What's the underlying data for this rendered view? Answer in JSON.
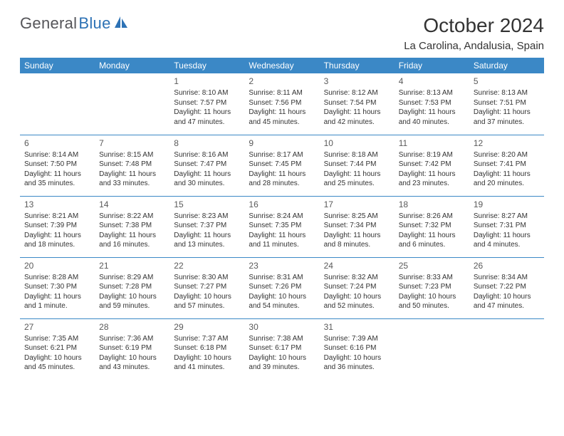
{
  "brand": {
    "name1": "General",
    "name2": "Blue"
  },
  "title": "October 2024",
  "location": "La Carolina, Andalusia, Spain",
  "colors": {
    "header_bg": "#3b88c6",
    "header_text": "#ffffff",
    "row_border": "#3b88c6",
    "body_text": "#333333",
    "logo_gray": "#555559",
    "logo_blue": "#2d72b5",
    "background": "#ffffff"
  },
  "weekdays": [
    "Sunday",
    "Monday",
    "Tuesday",
    "Wednesday",
    "Thursday",
    "Friday",
    "Saturday"
  ],
  "weeks": [
    [
      null,
      null,
      {
        "n": "1",
        "sr": "Sunrise: 8:10 AM",
        "ss": "Sunset: 7:57 PM",
        "d1": "Daylight: 11 hours",
        "d2": "and 47 minutes."
      },
      {
        "n": "2",
        "sr": "Sunrise: 8:11 AM",
        "ss": "Sunset: 7:56 PM",
        "d1": "Daylight: 11 hours",
        "d2": "and 45 minutes."
      },
      {
        "n": "3",
        "sr": "Sunrise: 8:12 AM",
        "ss": "Sunset: 7:54 PM",
        "d1": "Daylight: 11 hours",
        "d2": "and 42 minutes."
      },
      {
        "n": "4",
        "sr": "Sunrise: 8:13 AM",
        "ss": "Sunset: 7:53 PM",
        "d1": "Daylight: 11 hours",
        "d2": "and 40 minutes."
      },
      {
        "n": "5",
        "sr": "Sunrise: 8:13 AM",
        "ss": "Sunset: 7:51 PM",
        "d1": "Daylight: 11 hours",
        "d2": "and 37 minutes."
      }
    ],
    [
      {
        "n": "6",
        "sr": "Sunrise: 8:14 AM",
        "ss": "Sunset: 7:50 PM",
        "d1": "Daylight: 11 hours",
        "d2": "and 35 minutes."
      },
      {
        "n": "7",
        "sr": "Sunrise: 8:15 AM",
        "ss": "Sunset: 7:48 PM",
        "d1": "Daylight: 11 hours",
        "d2": "and 33 minutes."
      },
      {
        "n": "8",
        "sr": "Sunrise: 8:16 AM",
        "ss": "Sunset: 7:47 PM",
        "d1": "Daylight: 11 hours",
        "d2": "and 30 minutes."
      },
      {
        "n": "9",
        "sr": "Sunrise: 8:17 AM",
        "ss": "Sunset: 7:45 PM",
        "d1": "Daylight: 11 hours",
        "d2": "and 28 minutes."
      },
      {
        "n": "10",
        "sr": "Sunrise: 8:18 AM",
        "ss": "Sunset: 7:44 PM",
        "d1": "Daylight: 11 hours",
        "d2": "and 25 minutes."
      },
      {
        "n": "11",
        "sr": "Sunrise: 8:19 AM",
        "ss": "Sunset: 7:42 PM",
        "d1": "Daylight: 11 hours",
        "d2": "and 23 minutes."
      },
      {
        "n": "12",
        "sr": "Sunrise: 8:20 AM",
        "ss": "Sunset: 7:41 PM",
        "d1": "Daylight: 11 hours",
        "d2": "and 20 minutes."
      }
    ],
    [
      {
        "n": "13",
        "sr": "Sunrise: 8:21 AM",
        "ss": "Sunset: 7:39 PM",
        "d1": "Daylight: 11 hours",
        "d2": "and 18 minutes."
      },
      {
        "n": "14",
        "sr": "Sunrise: 8:22 AM",
        "ss": "Sunset: 7:38 PM",
        "d1": "Daylight: 11 hours",
        "d2": "and 16 minutes."
      },
      {
        "n": "15",
        "sr": "Sunrise: 8:23 AM",
        "ss": "Sunset: 7:37 PM",
        "d1": "Daylight: 11 hours",
        "d2": "and 13 minutes."
      },
      {
        "n": "16",
        "sr": "Sunrise: 8:24 AM",
        "ss": "Sunset: 7:35 PM",
        "d1": "Daylight: 11 hours",
        "d2": "and 11 minutes."
      },
      {
        "n": "17",
        "sr": "Sunrise: 8:25 AM",
        "ss": "Sunset: 7:34 PM",
        "d1": "Daylight: 11 hours",
        "d2": "and 8 minutes."
      },
      {
        "n": "18",
        "sr": "Sunrise: 8:26 AM",
        "ss": "Sunset: 7:32 PM",
        "d1": "Daylight: 11 hours",
        "d2": "and 6 minutes."
      },
      {
        "n": "19",
        "sr": "Sunrise: 8:27 AM",
        "ss": "Sunset: 7:31 PM",
        "d1": "Daylight: 11 hours",
        "d2": "and 4 minutes."
      }
    ],
    [
      {
        "n": "20",
        "sr": "Sunrise: 8:28 AM",
        "ss": "Sunset: 7:30 PM",
        "d1": "Daylight: 11 hours",
        "d2": "and 1 minute."
      },
      {
        "n": "21",
        "sr": "Sunrise: 8:29 AM",
        "ss": "Sunset: 7:28 PM",
        "d1": "Daylight: 10 hours",
        "d2": "and 59 minutes."
      },
      {
        "n": "22",
        "sr": "Sunrise: 8:30 AM",
        "ss": "Sunset: 7:27 PM",
        "d1": "Daylight: 10 hours",
        "d2": "and 57 minutes."
      },
      {
        "n": "23",
        "sr": "Sunrise: 8:31 AM",
        "ss": "Sunset: 7:26 PM",
        "d1": "Daylight: 10 hours",
        "d2": "and 54 minutes."
      },
      {
        "n": "24",
        "sr": "Sunrise: 8:32 AM",
        "ss": "Sunset: 7:24 PM",
        "d1": "Daylight: 10 hours",
        "d2": "and 52 minutes."
      },
      {
        "n": "25",
        "sr": "Sunrise: 8:33 AM",
        "ss": "Sunset: 7:23 PM",
        "d1": "Daylight: 10 hours",
        "d2": "and 50 minutes."
      },
      {
        "n": "26",
        "sr": "Sunrise: 8:34 AM",
        "ss": "Sunset: 7:22 PM",
        "d1": "Daylight: 10 hours",
        "d2": "and 47 minutes."
      }
    ],
    [
      {
        "n": "27",
        "sr": "Sunrise: 7:35 AM",
        "ss": "Sunset: 6:21 PM",
        "d1": "Daylight: 10 hours",
        "d2": "and 45 minutes."
      },
      {
        "n": "28",
        "sr": "Sunrise: 7:36 AM",
        "ss": "Sunset: 6:19 PM",
        "d1": "Daylight: 10 hours",
        "d2": "and 43 minutes."
      },
      {
        "n": "29",
        "sr": "Sunrise: 7:37 AM",
        "ss": "Sunset: 6:18 PM",
        "d1": "Daylight: 10 hours",
        "d2": "and 41 minutes."
      },
      {
        "n": "30",
        "sr": "Sunrise: 7:38 AM",
        "ss": "Sunset: 6:17 PM",
        "d1": "Daylight: 10 hours",
        "d2": "and 39 minutes."
      },
      {
        "n": "31",
        "sr": "Sunrise: 7:39 AM",
        "ss": "Sunset: 6:16 PM",
        "d1": "Daylight: 10 hours",
        "d2": "and 36 minutes."
      },
      null,
      null
    ]
  ]
}
